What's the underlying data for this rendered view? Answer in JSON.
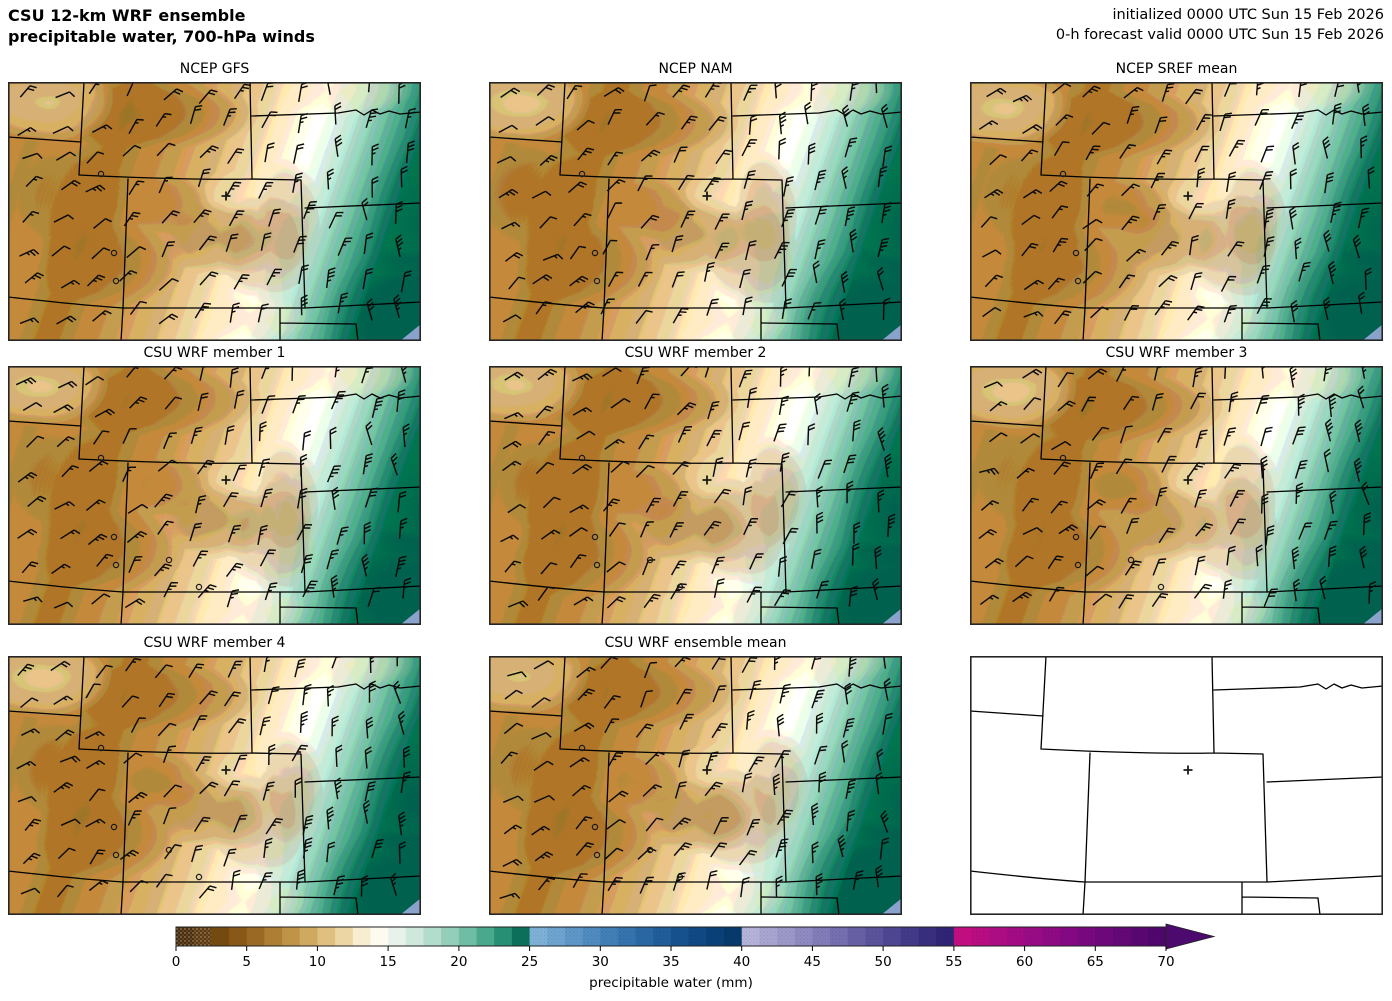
{
  "figure": {
    "title_line1": "CSU 12-km WRF ensemble",
    "title_line2": "precipitable water, 700-hPa winds",
    "init_text": "initialized 0000 UTC Sun 15 Feb 2026",
    "valid_text": "0-h forecast valid 0000 UTC Sun 15 Feb 2026"
  },
  "panels": [
    {
      "title": "NCEP GFS",
      "type": "filled"
    },
    {
      "title": "NCEP NAM",
      "type": "filled"
    },
    {
      "title": "NCEP SREF mean",
      "type": "filled"
    },
    {
      "title": "CSU WRF member 1",
      "type": "filled"
    },
    {
      "title": "CSU WRF member 2",
      "type": "filled"
    },
    {
      "title": "CSU WRF member 3",
      "type": "filled"
    },
    {
      "title": "CSU WRF member 4",
      "type": "filled"
    },
    {
      "title": "CSU WRF ensemble mean",
      "type": "filled"
    },
    {
      "title": "",
      "type": "blank"
    }
  ],
  "chart_data": {
    "type": "heatmap",
    "title": "CSU 12-km WRF ensemble precipitable water, 700-hPa winds",
    "subtitle_right": [
      "initialized 0000 UTC Sun 15 Feb 2026",
      "0-h forecast valid 0000 UTC Sun 15 Feb 2026"
    ],
    "panel_titles": [
      "NCEP GFS",
      "NCEP NAM",
      "NCEP SREF mean",
      "CSU WRF member 1",
      "CSU WRF member 2",
      "CSU WRF member 3",
      "CSU WRF member 4",
      "CSU WRF ensemble mean",
      ""
    ],
    "variable": "precipitable water",
    "units": "mm",
    "wind_level": "700 hPa",
    "overlay": "wind barbs",
    "region": "Colorado / Wyoming / Utah and neighboring states",
    "grid": "3x3 panels, bottom-right panel blank basemap",
    "approx_field_values_mm": {
      "west_interior": "2.5-10",
      "wyoming_dark_patch": "5-7.5",
      "transition_band_east": "10-15",
      "far_east_teal": "15-25",
      "southeast_corner": "25-30"
    },
    "colorbar": {
      "label": "precipitable water (mm)",
      "ticks": [
        0,
        5,
        10,
        15,
        20,
        25,
        30,
        35,
        40,
        45,
        50,
        55,
        60,
        65,
        70
      ],
      "range_shown_mm": [
        0,
        70
      ],
      "segment_step_mm": 1.25,
      "extend": "max-arrow",
      "arrow_color": "#4c0a6e",
      "colors": [
        "#4a2e0c",
        "#5d3a0f",
        "#734a10",
        "#875817",
        "#9a6a24",
        "#ad7e34",
        "#bf9448",
        "#cfa960",
        "#dfc080",
        "#ecd6a4",
        "#f8edd1",
        "#fdfaf0",
        "#e7f3ea",
        "#cfe8dc",
        "#b2dccc",
        "#92ceb9",
        "#6fbda4",
        "#4aa88c",
        "#278f74",
        "#0c6f5a",
        "#7fb2d9",
        "#6fa5d1",
        "#5f98c9",
        "#508cc1",
        "#4280b8",
        "#3574af",
        "#2a69a6",
        "#205e9c",
        "#175390",
        "#104a86",
        "#0a4179",
        "#063a6d",
        "#b6b4da",
        "#aaa6d2",
        "#9d99ca",
        "#908bc2",
        "#837db9",
        "#7670b1",
        "#6861a7",
        "#5b549d",
        "#4f4794",
        "#433a8a",
        "#392f80",
        "#302576",
        "#c40e82",
        "#ba0d84",
        "#b00c85",
        "#a50b86",
        "#9a0b86",
        "#900a86",
        "#850984",
        "#7a0981",
        "#6f087d",
        "#640878",
        "#5a0773",
        "#50066d"
      ]
    }
  }
}
